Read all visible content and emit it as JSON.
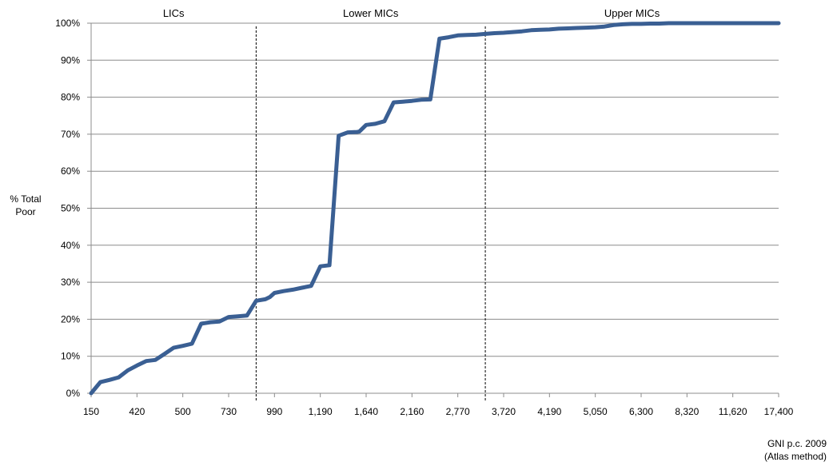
{
  "chart_data": {
    "type": "line",
    "ylabel_lines": [
      "% Total",
      "Poor"
    ],
    "xlabel_lines": [
      "GNI p.c. 2009",
      "(Atlas method)"
    ],
    "region_labels": [
      "LICs",
      "Lower MICs",
      "Upper MICs"
    ],
    "x_tick_labels": [
      "150",
      "420",
      "500",
      "730",
      "990",
      "1,190",
      "1,640",
      "2,160",
      "2,770",
      "3,720",
      "4,190",
      "5,050",
      "6,300",
      "8,320",
      "11,620",
      "17,400"
    ],
    "y_tick_labels": [
      "0%",
      "10%",
      "20%",
      "30%",
      "40%",
      "50%",
      "60%",
      "70%",
      "80%",
      "90%",
      "100%"
    ],
    "ylim": [
      0,
      100
    ],
    "grid": true,
    "line_color": "#3a5f93",
    "divider_positions": [
      4,
      9
    ],
    "series": [
      {
        "x": [
          0,
          0.2,
          0.4,
          0.6,
          0.8,
          1.0,
          1.2,
          1.4,
          1.6,
          1.8,
          2.0,
          2.2,
          2.4,
          2.6,
          2.8,
          3.0,
          3.2,
          3.4,
          3.6,
          3.8,
          3.9,
          4.0,
          4.2,
          4.4,
          4.6,
          4.8,
          5.0,
          5.2,
          5.4,
          5.6,
          5.8,
          5.85,
          6.0,
          6.2,
          6.4,
          6.6,
          6.8,
          7.0,
          7.2,
          7.4,
          7.6,
          7.8,
          8.0,
          8.2,
          8.4,
          8.6,
          8.8,
          9.0,
          9.2,
          9.4,
          9.6,
          9.8,
          10.0,
          10.2,
          10.4,
          10.6,
          10.8,
          11.0,
          11.2,
          11.4,
          11.6,
          11.8,
          12.0,
          12.2,
          12.4,
          12.6,
          12.8,
          13.0,
          13.2,
          13.4,
          13.6,
          13.8,
          14.0,
          14.2,
          14.4,
          14.6,
          14.8,
          15.0
        ],
        "values": [
          0,
          3,
          3.6,
          4.3,
          6.2,
          7.5,
          8.7,
          9,
          10.6,
          12.3,
          12.8,
          13.4,
          18.8,
          19.2,
          19.4,
          20.6,
          20.8,
          21,
          25,
          25.4,
          26,
          27.1,
          27.6,
          28,
          28.5,
          29,
          34.3,
          34.6,
          69.6,
          70.5,
          70.6,
          70.7,
          72.5,
          72.8,
          73.5,
          78.6,
          78.8,
          79,
          79.3,
          79.4,
          95.8,
          96.2,
          96.7,
          96.8,
          96.9,
          97.1,
          97.3,
          97.4,
          97.6,
          97.8,
          98.1,
          98.2,
          98.3,
          98.5,
          98.6,
          98.7,
          98.8,
          98.9,
          99.1,
          99.5,
          99.7,
          99.8,
          99.8,
          99.9,
          99.9,
          100,
          100,
          100,
          100,
          100,
          100,
          100,
          100,
          100,
          100,
          100,
          100,
          100
        ]
      }
    ]
  }
}
